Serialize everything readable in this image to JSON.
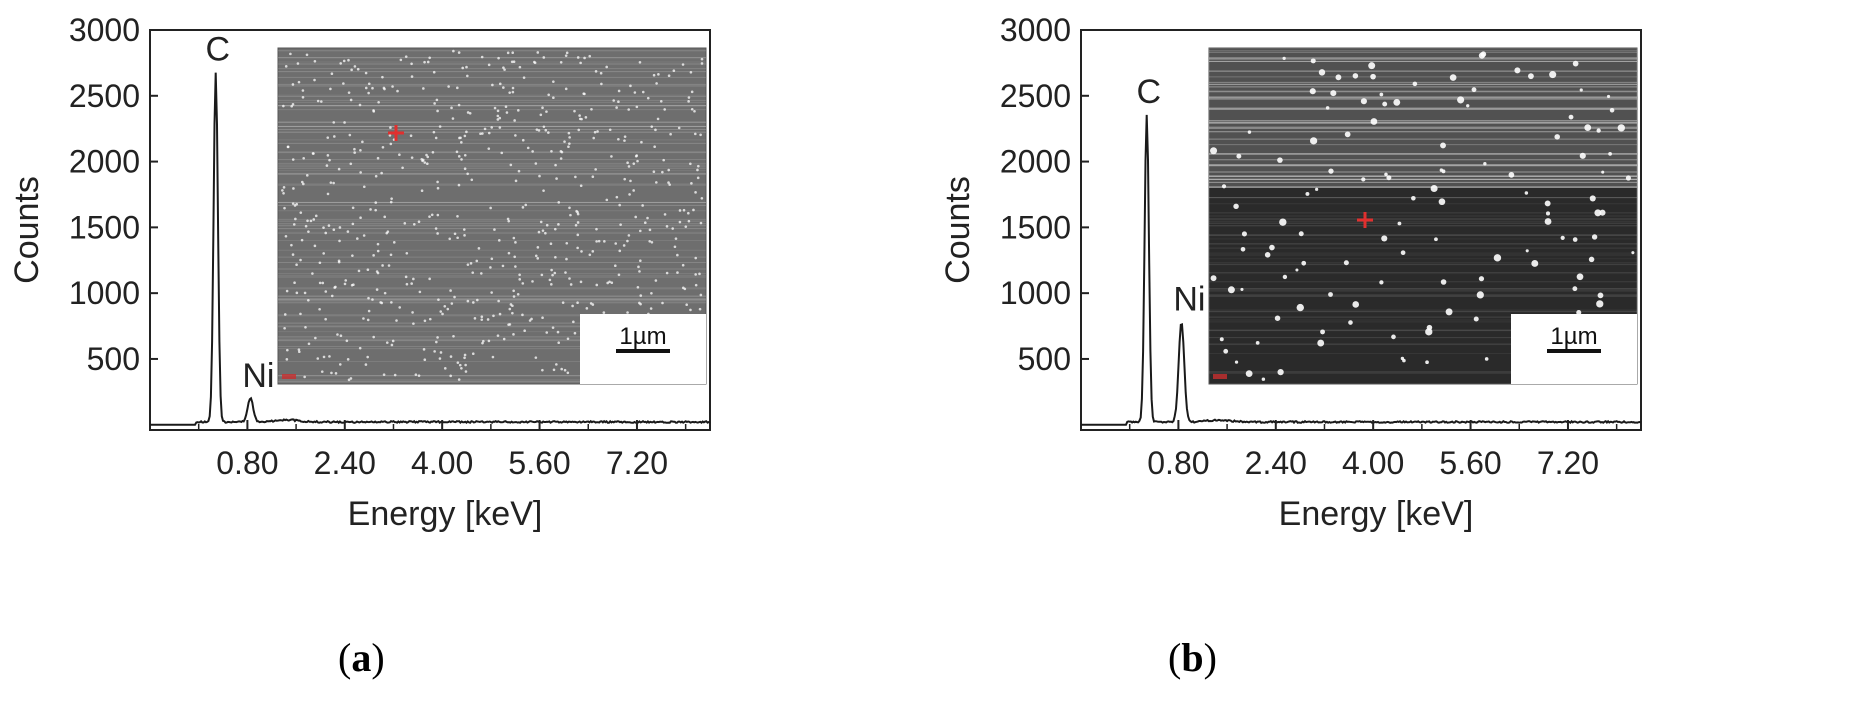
{
  "chart_data": [
    {
      "id": "a",
      "type": "line",
      "panel_label": "a",
      "xlabel": "Energy [keV]",
      "ylabel": "Counts",
      "xlim": [
        -0.8,
        8.4
      ],
      "ylim": [
        -40,
        3000
      ],
      "x_ticks": [
        0.8,
        2.4,
        4.0,
        5.6,
        7.2
      ],
      "x_tick_labels": [
        "0.80",
        "2.40",
        "4.00",
        "5.60",
        "7.20"
      ],
      "y_ticks": [
        500,
        1000,
        1500,
        2000,
        2500,
        3000
      ],
      "y_tick_labels": [
        "500",
        "1000",
        "1500",
        "2000",
        "2500",
        "3000"
      ],
      "grid": false,
      "series": [
        {
          "peaks": [
            {
              "label": "C",
              "x": 0.28,
              "y": 2660
            },
            {
              "label": "Ni",
              "x": 0.85,
              "y": 180
            }
          ],
          "baseline": 15,
          "color": "#1a1a1a"
        }
      ],
      "inset": {
        "scale_bar_label": "1µm",
        "theme": "#6e6e6e",
        "marker_color": "#e0302f",
        "corner_text_color": "#c83030"
      }
    },
    {
      "id": "b",
      "type": "line",
      "panel_label": "b",
      "xlabel": "Energy [keV]",
      "ylabel": "Counts",
      "xlim": [
        -0.8,
        8.4
      ],
      "ylim": [
        -40,
        3000
      ],
      "x_ticks": [
        0.8,
        2.4,
        4.0,
        5.6,
        7.2
      ],
      "x_tick_labels": [
        "0.80",
        "2.40",
        "4.00",
        "5.60",
        "7.20"
      ],
      "y_ticks": [
        500,
        1000,
        1500,
        2000,
        2500,
        3000
      ],
      "y_tick_labels": [
        "500",
        "1000",
        "1500",
        "2000",
        "2500",
        "3000"
      ],
      "grid": false,
      "series": [
        {
          "peaks": [
            {
              "label": "C",
              "x": 0.28,
              "y": 2340
            },
            {
              "label": "Ni",
              "x": 0.85,
              "y": 760
            }
          ],
          "baseline": 15,
          "color": "#1a1a1a"
        }
      ],
      "inset": {
        "scale_bar_label": "1µm",
        "theme": "#2a2a2a",
        "marker_color": "#e0302f",
        "corner_text_color": "#c83030"
      }
    }
  ]
}
